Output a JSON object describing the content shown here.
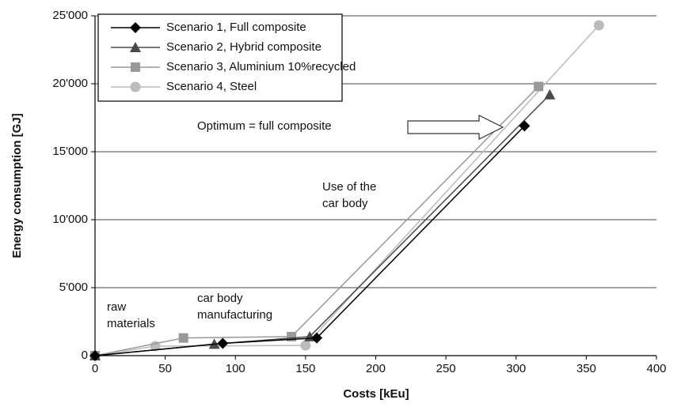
{
  "chart_data": {
    "type": "line",
    "xlabel": "Costs [kEu]",
    "ylabel": "Energy consumption [GJ]",
    "xlim": [
      0,
      400
    ],
    "xticks": [
      0,
      50,
      100,
      150,
      200,
      250,
      300,
      350,
      400
    ],
    "ylim": [
      0,
      25000
    ],
    "yticks": [
      {
        "value": 0,
        "label": "0"
      },
      {
        "value": 5000,
        "label": "5'000"
      },
      {
        "value": 10000,
        "label": "10'000"
      },
      {
        "value": 15000,
        "label": "15'000"
      },
      {
        "value": 20000,
        "label": "20'000"
      },
      {
        "value": 25000,
        "label": "25'000"
      }
    ],
    "grid": true,
    "legend": "upper left",
    "series": [
      {
        "name": "Scenario 1, Full composite",
        "color": "#000000",
        "marker": "diamond",
        "x": [
          0,
          91,
          158,
          306
        ],
        "values": [
          0,
          900,
          1300,
          16900
        ]
      },
      {
        "name": "Scenario 2, Hybrid composite",
        "color": "#4a4a4a",
        "marker": "triangle",
        "x": [
          0,
          85,
          153,
          324
        ],
        "values": [
          0,
          850,
          1400,
          19200
        ]
      },
      {
        "name": "Scenario 3, Aluminium 10%recycled",
        "color": "#999999",
        "marker": "square",
        "x": [
          0,
          63,
          140,
          316
        ],
        "values": [
          0,
          1300,
          1400,
          19800
        ]
      },
      {
        "name": "Scenario 4, Steel",
        "color": "#bbbbbb",
        "marker": "circle",
        "x": [
          0,
          43,
          150,
          359
        ],
        "values": [
          0,
          700,
          750,
          24300
        ]
      }
    ],
    "annotations": [
      {
        "lines": [
          "Optimum = full composite"
        ]
      },
      {
        "lines": [
          "Use of the",
          "car body"
        ]
      },
      {
        "lines": [
          "raw",
          "materials"
        ]
      },
      {
        "lines": [
          "car body",
          "manufacturing"
        ]
      }
    ]
  }
}
